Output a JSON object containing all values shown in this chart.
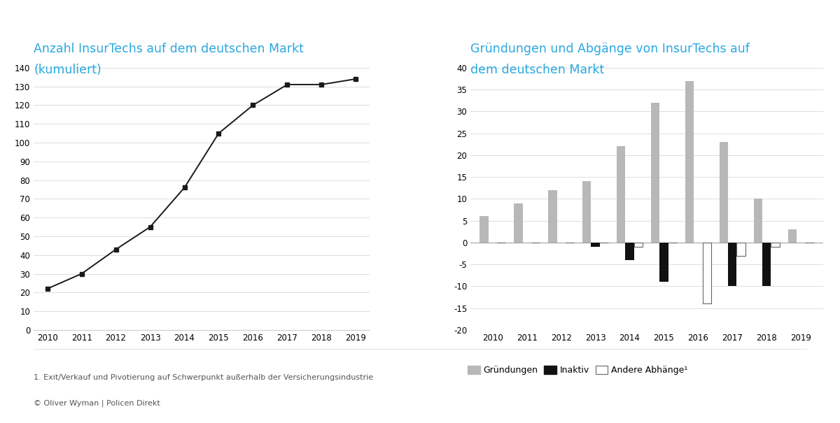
{
  "left_title_line1": "Anzahl InsurTechs auf dem deutschen Markt",
  "left_title_line2": "(kumuliert)",
  "left_years": [
    2010,
    2011,
    2012,
    2013,
    2014,
    2015,
    2016,
    2017,
    2018,
    2019
  ],
  "left_values": [
    22,
    30,
    43,
    55,
    76,
    105,
    120,
    131,
    131,
    134
  ],
  "left_ylim": [
    0,
    140
  ],
  "left_yticks": [
    0,
    10,
    20,
    30,
    40,
    50,
    60,
    70,
    80,
    90,
    100,
    110,
    120,
    130,
    140
  ],
  "right_title_line1": "Gründungen und Abgänge von InsurTechs auf",
  "right_title_line2": "dem deutschen Markt",
  "right_years": [
    2010,
    2011,
    2012,
    2013,
    2014,
    2015,
    2016,
    2017,
    2018,
    2019
  ],
  "gruendungen": [
    6,
    9,
    12,
    14,
    22,
    32,
    37,
    23,
    10,
    3
  ],
  "inaktiv": [
    0,
    0,
    0,
    -1,
    -4,
    -9,
    0,
    -10,
    -10,
    0
  ],
  "andere": [
    0,
    0,
    0,
    0,
    -1,
    0,
    -14,
    -3,
    -1,
    0
  ],
  "right_ylim": [
    -20,
    40
  ],
  "right_yticks": [
    -20,
    -15,
    -10,
    -5,
    0,
    5,
    10,
    15,
    20,
    25,
    30,
    35,
    40
  ],
  "color_gruendungen": "#b8b8b8",
  "color_inaktiv": "#111111",
  "color_andere": "#ffffff",
  "color_andere_edge": "#666666",
  "title_color": "#29a8e0",
  "line_color": "#1a1a1a",
  "grid_color": "#d8d8d8",
  "footnote": "1. Exit/Verkauf und Pivotierung auf Schwerpunkt außerhalb der Versicherungsindustrie",
  "source": "© Oliver Wyman | Policen Direkt",
  "legend_gruendungen": "Gründungen",
  "legend_inaktiv": "Inaktiv",
  "legend_andere": "Andere Abhänge¹",
  "bar_width": 0.25
}
